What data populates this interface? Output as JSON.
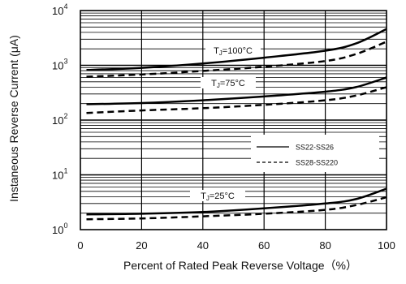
{
  "chart_data": {
    "type": "line",
    "title": "",
    "xlabel": "Percent of Rated Peak Reverse Voltage（%）",
    "ylabel": "Instaneous Reverse Current (μA)",
    "xlim": [
      0,
      100
    ],
    "ylim": [
      1,
      10000
    ],
    "y_scale": "log",
    "grid": true,
    "x_ticks": [
      "0",
      "20",
      "40",
      "60",
      "80",
      "100"
    ],
    "y_ticks": [
      {
        "value": 1,
        "base": "10",
        "exp": "0"
      },
      {
        "value": 10,
        "base": "10",
        "exp": "1"
      },
      {
        "value": 100,
        "base": "10",
        "exp": "2"
      },
      {
        "value": 1000,
        "base": "10",
        "exp": "3"
      },
      {
        "value": 10000,
        "base": "10",
        "exp": "4"
      }
    ],
    "legend": {
      "placement": "center-right",
      "entries": [
        {
          "label": "SS22-SS26",
          "style": "solid"
        },
        {
          "label": "SS28-SS220",
          "style": "dashed"
        }
      ]
    },
    "groups": [
      {
        "label_main": "T",
        "label_sub": "J",
        "label_rest": "=100°C",
        "curves": [
          {
            "series": "SS22-SS26",
            "style": "solid",
            "x": [
              2,
              20,
              40,
              60,
              80,
              90,
              100
            ],
            "y": [
              820,
              900,
              1080,
              1380,
              1850,
              2500,
              4600
            ]
          },
          {
            "series": "SS28-SS220",
            "style": "dashed",
            "x": [
              2,
              20,
              40,
              60,
              80,
              90,
              100
            ],
            "y": [
              620,
              680,
              790,
              940,
              1200,
              1600,
              2700
            ]
          }
        ]
      },
      {
        "label_main": "T",
        "label_sub": "J",
        "label_rest": "=75°C",
        "curves": [
          {
            "series": "SS22-SS26",
            "style": "solid",
            "x": [
              2,
              20,
              40,
              60,
              80,
              90,
              100
            ],
            "y": [
              195,
              205,
              230,
              270,
              330,
              400,
              600
            ]
          },
          {
            "series": "SS28-SS220",
            "style": "dashed",
            "x": [
              2,
              20,
              40,
              60,
              80,
              90,
              100
            ],
            "y": [
              135,
              150,
              165,
              190,
              230,
              280,
              400
            ]
          }
        ]
      },
      {
        "label_main": "T",
        "label_sub": "J",
        "label_rest": "=25°C",
        "curves": [
          {
            "series": "SS22-SS26",
            "style": "solid",
            "x": [
              2,
              20,
              40,
              60,
              80,
              90,
              100
            ],
            "y": [
              1.9,
              1.95,
              2.1,
              2.45,
              3.0,
              3.6,
              5.6
            ]
          },
          {
            "series": "SS28-SS220",
            "style": "dashed",
            "x": [
              2,
              20,
              40,
              60,
              80,
              90,
              100
            ],
            "y": [
              1.55,
              1.6,
              1.75,
              1.95,
              2.3,
              2.8,
              3.9
            ]
          }
        ]
      }
    ]
  },
  "colors": {
    "line": "#000000",
    "grid": "#000000",
    "background": "#ffffff"
  }
}
